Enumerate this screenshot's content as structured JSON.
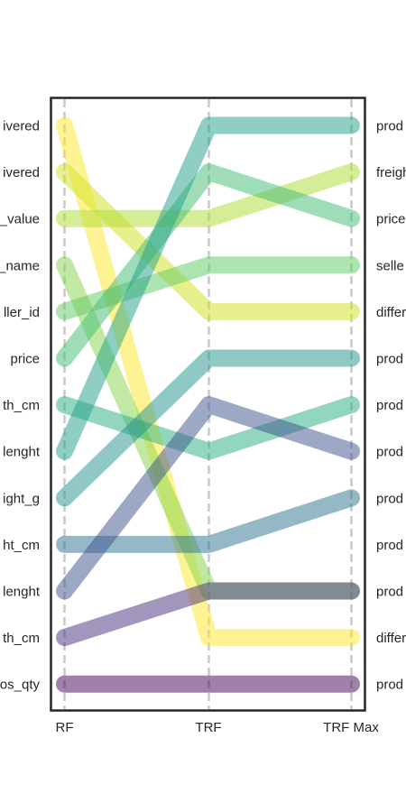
{
  "chart_data": {
    "type": "line",
    "subtype": "slope-chart",
    "x": [
      "RF",
      "TRF",
      "TRF Max"
    ],
    "series_count": 13,
    "rank_range": [
      1,
      13
    ],
    "left_labels": [
      "…ivered",
      "…ivered",
      "…_value",
      "…_name",
      "…ller_id",
      "price",
      "…th_cm",
      "…lenght",
      "…ight_g",
      "…ht_cm",
      "…lenght",
      "…th_cm",
      "…os_qty"
    ],
    "right_labels": [
      "prod…",
      "freigh…",
      "price",
      "selle…",
      "differ…",
      "prod…",
      "prod…",
      "prod…",
      "prod…",
      "prod…",
      "prod…",
      "differ…",
      "prod…"
    ],
    "series": [
      {
        "ranks": [
          1,
          12,
          12
        ],
        "color": "#fde725"
      },
      {
        "ranks": [
          2,
          5,
          5
        ],
        "color": "#d2e21b"
      },
      {
        "ranks": [
          3,
          3,
          2
        ],
        "color": "#addc30"
      },
      {
        "ranks": [
          4,
          11,
          11
        ],
        "color": "#84d44b"
      },
      {
        "ranks": [
          5,
          4,
          4
        ],
        "color": "#5ec962"
      },
      {
        "ranks": [
          6,
          2,
          3
        ],
        "color": "#3fbc73"
      },
      {
        "ranks": [
          7,
          8,
          7
        ],
        "color": "#28ae80"
      },
      {
        "ranks": [
          8,
          1,
          1
        ],
        "color": "#1fa088"
      },
      {
        "ranks": [
          9,
          6,
          6
        ],
        "color": "#21918c"
      },
      {
        "ranks": [
          10,
          10,
          9
        ],
        "color": "#2c728e"
      },
      {
        "ranks": [
          11,
          7,
          8
        ],
        "color": "#3b528b"
      },
      {
        "ranks": [
          12,
          11,
          11
        ],
        "color": "#472d7b"
      },
      {
        "ranks": [
          13,
          13,
          13
        ],
        "color": "#440154"
      }
    ],
    "grid": false
  }
}
